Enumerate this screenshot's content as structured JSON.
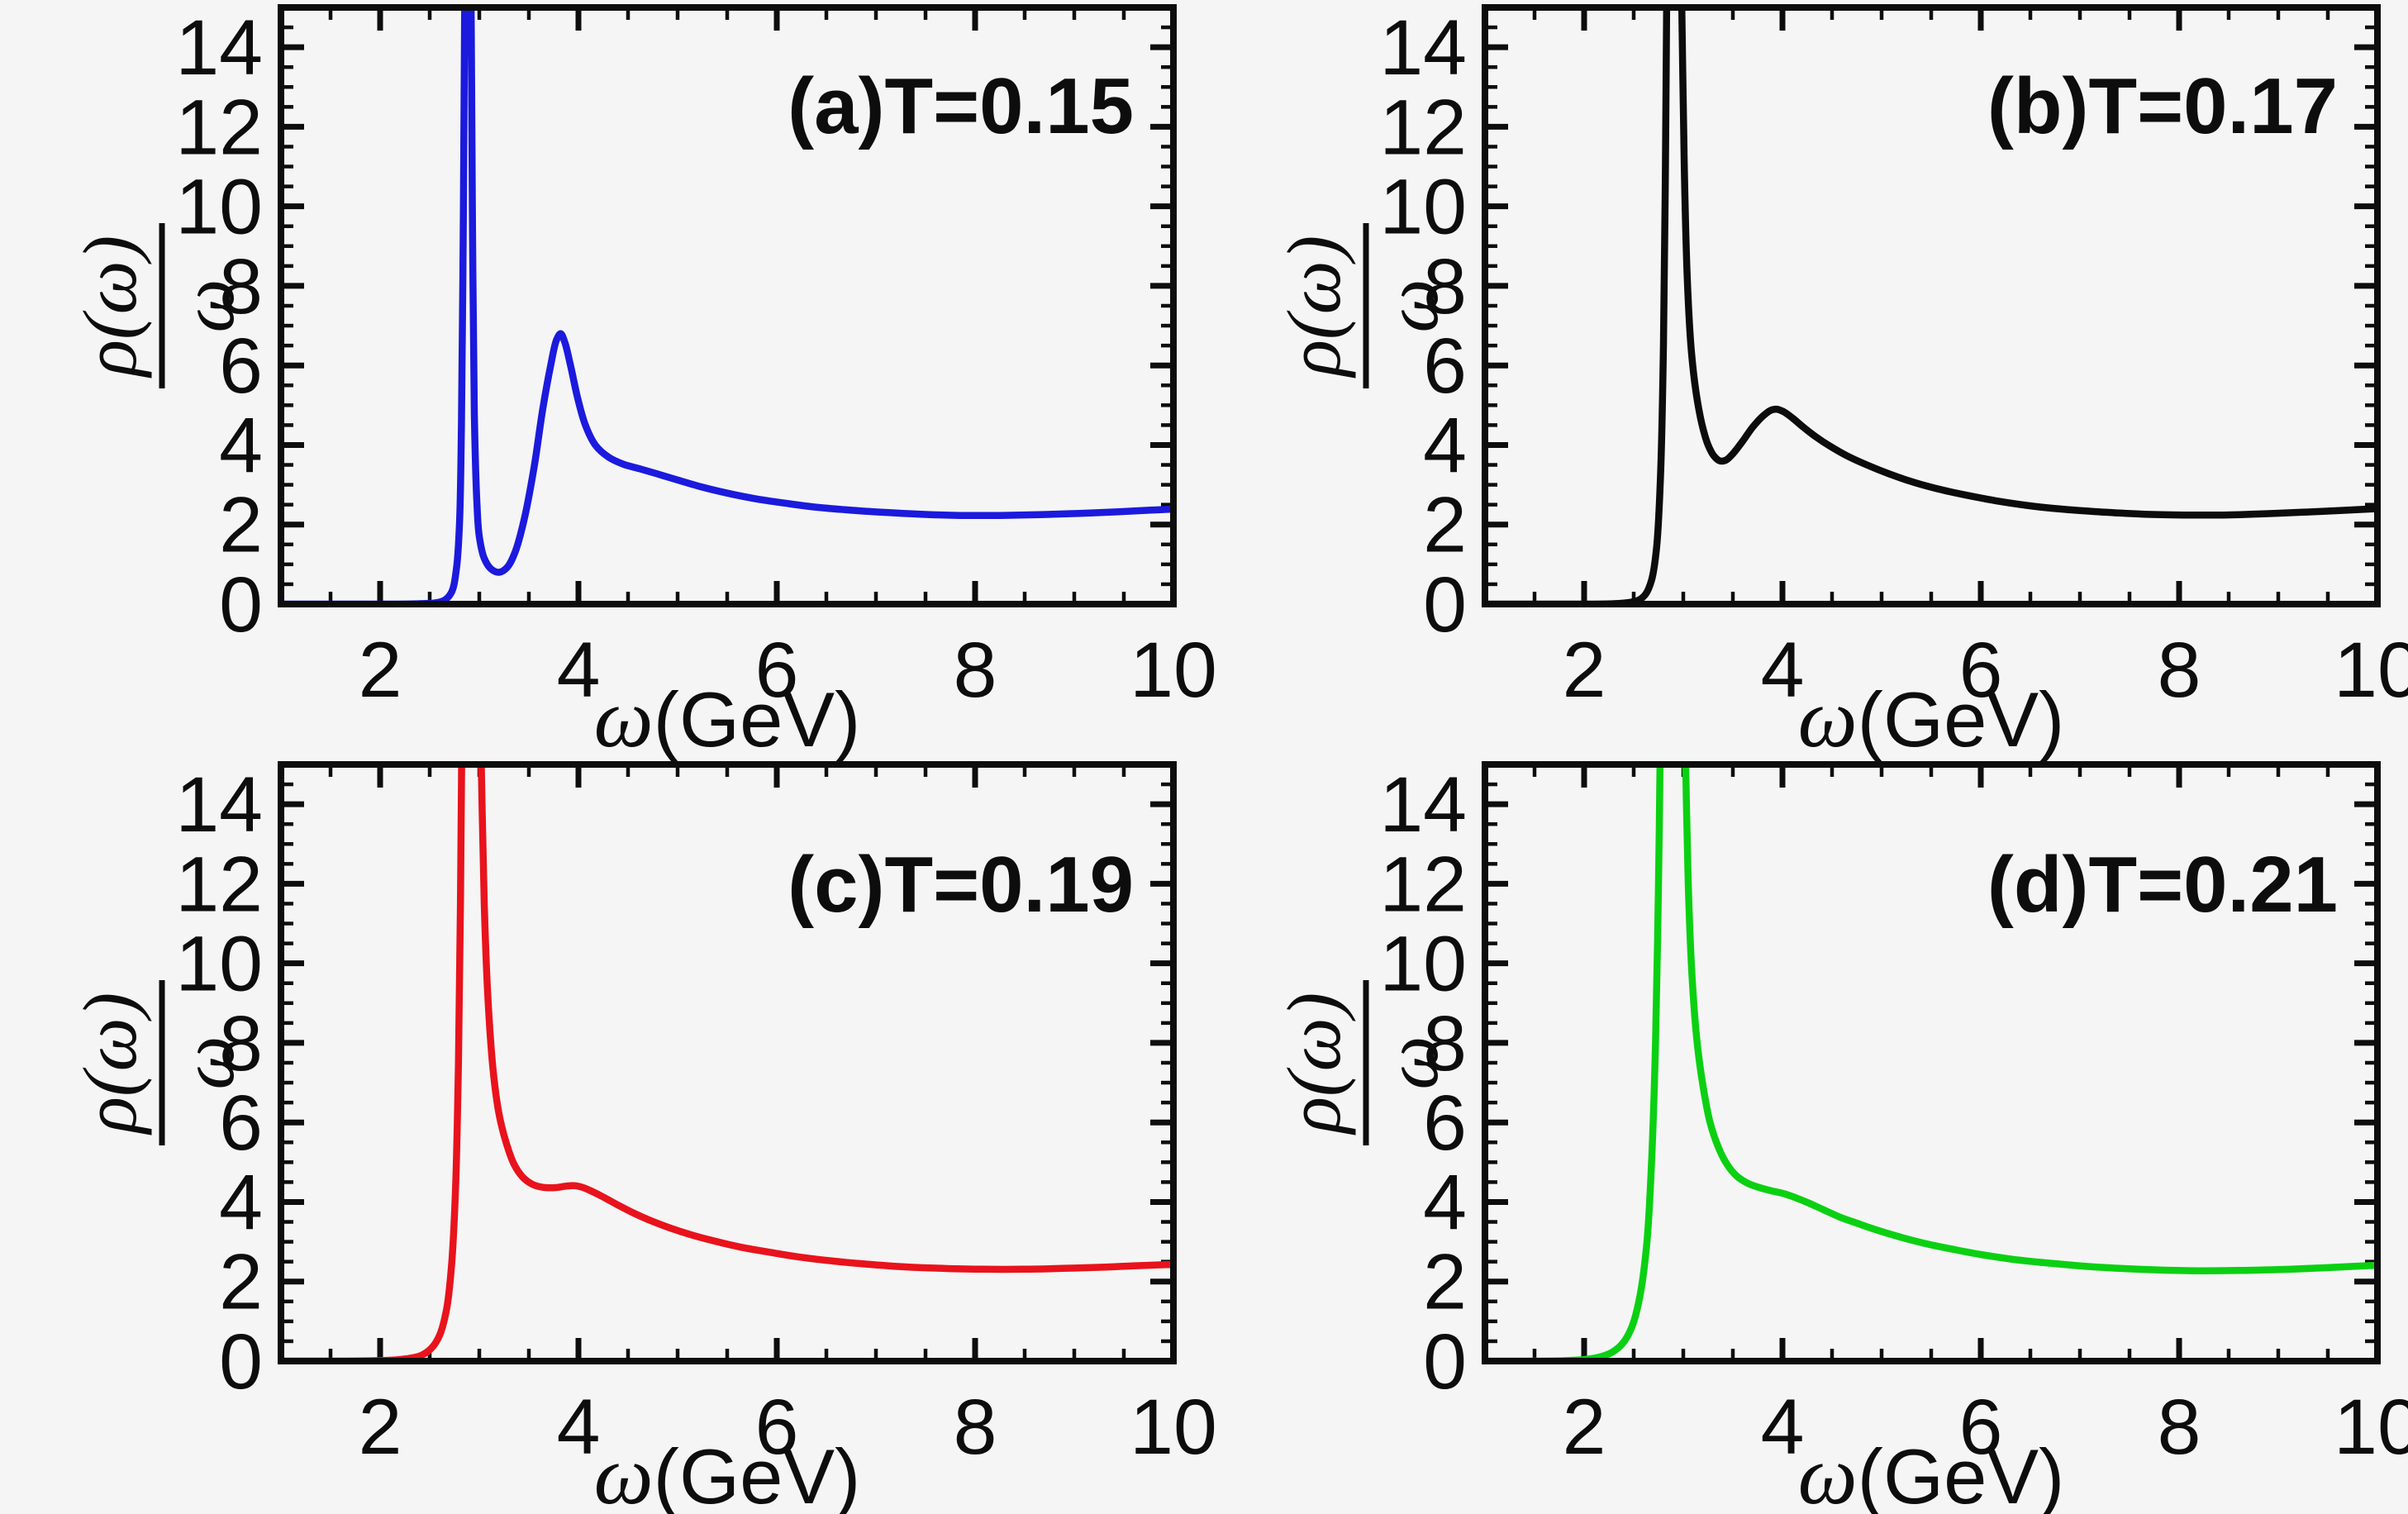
{
  "figure": {
    "background": "#f5f5f5",
    "frame_color": "#0d0d0d",
    "text_color": "#0d0d0d"
  },
  "axes": {
    "x": {
      "title_symbol": "ω",
      "title_units": "(GeV)",
      "min": 1,
      "max": 10,
      "major_ticks": [
        2,
        4,
        6,
        8,
        10
      ],
      "tick_labels": [
        "2",
        "4",
        "6",
        "8",
        "10"
      ],
      "minor_step": 0.5
    },
    "y": {
      "title_numerator": "ρ(ω)",
      "title_denominator": "ω",
      "min": 0,
      "max": 15,
      "major_ticks": [
        0,
        2,
        4,
        6,
        8,
        10,
        12,
        14
      ],
      "tick_labels": [
        "0",
        "2",
        "4",
        "6",
        "8",
        "10",
        "12",
        "14"
      ],
      "minor_step": 0.5
    }
  },
  "panels": [
    {
      "id": "a",
      "row": 0,
      "col": 0,
      "label": "(a)T=0.15",
      "color": "#1b1add",
      "chart_index": 0
    },
    {
      "id": "b",
      "row": 0,
      "col": 1,
      "label": "(b)T=0.17",
      "color": "#0c0c0c",
      "chart_index": 1
    },
    {
      "id": "c",
      "row": 1,
      "col": 0,
      "label": "(c)T=0.19",
      "color": "#e8131c",
      "chart_index": 2
    },
    {
      "id": "d",
      "row": 1,
      "col": 1,
      "label": "(d)T=0.21",
      "color": "#0bd012",
      "chart_index": 3
    }
  ],
  "chart_data": [
    {
      "type": "line",
      "panel": "a",
      "title": "(a)T=0.15",
      "temperature": "T=0.15",
      "xlabel": "ω(GeV)",
      "ylabel": "ρ(ω)/ω",
      "xlim": [
        1,
        10
      ],
      "ylim": [
        0,
        15
      ],
      "x_major_ticks": [
        2,
        4,
        6,
        8,
        10
      ],
      "y_major_ticks": [
        0,
        2,
        4,
        6,
        8,
        10,
        12,
        14
      ],
      "minor_tick_step": 0.5,
      "grid": false,
      "legend_position": "none",
      "clipped_peak": {
        "omega": 2.88,
        "exceeds_ylim": true
      },
      "secondary_peak": {
        "omega": 3.8,
        "value": 6.8
      },
      "series": [
        {
          "name": "rho(omega)/omega at T=0.15",
          "color": "#1b1add",
          "points": [
            [
              1,
              0
            ],
            [
              1.6,
              0
            ],
            [
              2.1,
              0
            ],
            [
              2.4,
              0.01
            ],
            [
              2.55,
              0.03
            ],
            [
              2.65,
              0.1
            ],
            [
              2.72,
              0.3
            ],
            [
              2.77,
              0.9
            ],
            [
              2.8,
              2
            ],
            [
              2.82,
              4.5
            ],
            [
              2.84,
              10
            ],
            [
              2.855,
              16
            ],
            [
              2.865,
              18.5
            ],
            [
              2.9,
              18.5
            ],
            [
              2.915,
              16
            ],
            [
              2.93,
              10
            ],
            [
              2.95,
              4.8
            ],
            [
              2.975,
              2.6
            ],
            [
              3,
              1.7
            ],
            [
              3.05,
              1.15
            ],
            [
              3.12,
              0.88
            ],
            [
              3.2,
              0.8
            ],
            [
              3.28,
              0.92
            ],
            [
              3.36,
              1.3
            ],
            [
              3.45,
              2.1
            ],
            [
              3.55,
              3.4
            ],
            [
              3.64,
              4.9
            ],
            [
              3.72,
              6
            ],
            [
              3.78,
              6.65
            ],
            [
              3.82,
              6.8
            ],
            [
              3.86,
              6.6
            ],
            [
              3.92,
              6
            ],
            [
              3.99,
              5.2
            ],
            [
              4.07,
              4.5
            ],
            [
              4.17,
              4
            ],
            [
              4.3,
              3.7
            ],
            [
              4.45,
              3.52
            ],
            [
              4.62,
              3.4
            ],
            [
              4.8,
              3.27
            ],
            [
              5,
              3.12
            ],
            [
              5.25,
              2.94
            ],
            [
              5.5,
              2.79
            ],
            [
              5.78,
              2.65
            ],
            [
              6.05,
              2.55
            ],
            [
              6.35,
              2.45
            ],
            [
              6.7,
              2.37
            ],
            [
              7.05,
              2.31
            ],
            [
              7.45,
              2.26
            ],
            [
              7.85,
              2.23
            ],
            [
              8.25,
              2.23
            ],
            [
              8.65,
              2.25
            ],
            [
              9.05,
              2.28
            ],
            [
              9.45,
              2.32
            ],
            [
              9.75,
              2.36
            ],
            [
              10,
              2.39
            ]
          ]
        }
      ]
    },
    {
      "type": "line",
      "panel": "b",
      "title": "(b)T=0.17",
      "temperature": "T=0.17",
      "xlabel": "ω(GeV)",
      "ylabel": "ρ(ω)/ω",
      "xlim": [
        1,
        10
      ],
      "ylim": [
        0,
        15
      ],
      "x_major_ticks": [
        2,
        4,
        6,
        8,
        10
      ],
      "y_major_ticks": [
        0,
        2,
        4,
        6,
        8,
        10,
        12,
        14
      ],
      "minor_tick_step": 0.5,
      "grid": false,
      "legend_position": "none",
      "clipped_peak": {
        "omega": 2.9,
        "exceeds_ylim": true
      },
      "secondary_peak": {
        "omega": 3.9,
        "value": 4.9
      },
      "series": [
        {
          "name": "rho(omega)/omega at T=0.17",
          "color": "#0c0c0c",
          "points": [
            [
              1,
              0
            ],
            [
              1.6,
              0
            ],
            [
              2.05,
              0
            ],
            [
              2.3,
              0.01
            ],
            [
              2.45,
              0.04
            ],
            [
              2.55,
              0.1
            ],
            [
              2.62,
              0.25
            ],
            [
              2.68,
              0.6
            ],
            [
              2.73,
              1.4
            ],
            [
              2.77,
              3.2
            ],
            [
              2.8,
              6.5
            ],
            [
              2.82,
              11
            ],
            [
              2.835,
              16
            ],
            [
              2.845,
              18.5
            ],
            [
              2.96,
              18.5
            ],
            [
              2.985,
              15
            ],
            [
              3.01,
              11
            ],
            [
              3.04,
              8.2
            ],
            [
              3.08,
              6.4
            ],
            [
              3.13,
              5.3
            ],
            [
              3.19,
              4.5
            ],
            [
              3.25,
              4
            ],
            [
              3.31,
              3.72
            ],
            [
              3.37,
              3.6
            ],
            [
              3.43,
              3.62
            ],
            [
              3.5,
              3.78
            ],
            [
              3.6,
              4.1
            ],
            [
              3.7,
              4.45
            ],
            [
              3.8,
              4.72
            ],
            [
              3.88,
              4.87
            ],
            [
              3.94,
              4.9
            ],
            [
              4.01,
              4.84
            ],
            [
              4.1,
              4.68
            ],
            [
              4.21,
              4.45
            ],
            [
              4.34,
              4.2
            ],
            [
              4.48,
              3.97
            ],
            [
              4.65,
              3.73
            ],
            [
              4.85,
              3.5
            ],
            [
              5.07,
              3.28
            ],
            [
              5.3,
              3.08
            ],
            [
              5.56,
              2.9
            ],
            [
              5.85,
              2.74
            ],
            [
              6.15,
              2.6
            ],
            [
              6.5,
              2.47
            ],
            [
              6.85,
              2.38
            ],
            [
              7.25,
              2.31
            ],
            [
              7.65,
              2.26
            ],
            [
              8.05,
              2.24
            ],
            [
              8.45,
              2.24
            ],
            [
              8.85,
              2.27
            ],
            [
              9.25,
              2.31
            ],
            [
              9.6,
              2.35
            ],
            [
              10,
              2.4
            ]
          ]
        }
      ]
    },
    {
      "type": "line",
      "panel": "c",
      "title": "(c)T=0.19",
      "temperature": "T=0.19",
      "xlabel": "ω(GeV)",
      "ylabel": "ρ(ω)/ω",
      "xlim": [
        1,
        10
      ],
      "ylim": [
        0,
        15
      ],
      "x_major_ticks": [
        2,
        4,
        6,
        8,
        10
      ],
      "y_major_ticks": [
        0,
        2,
        4,
        6,
        8,
        10,
        12,
        14
      ],
      "minor_tick_step": 0.5,
      "grid": false,
      "legend_position": "none",
      "clipped_peak": {
        "omega": 2.92,
        "exceeds_ylim": true
      },
      "secondary_peak": {
        "omega": 3.95,
        "value": 4.41
      },
      "series": [
        {
          "name": "rho(omega)/omega at T=0.19",
          "color": "#e8131c",
          "points": [
            [
              1,
              0
            ],
            [
              1.6,
              0
            ],
            [
              1.95,
              0.01
            ],
            [
              2.15,
              0.03
            ],
            [
              2.3,
              0.07
            ],
            [
              2.42,
              0.15
            ],
            [
              2.52,
              0.33
            ],
            [
              2.6,
              0.65
            ],
            [
              2.67,
              1.3
            ],
            [
              2.72,
              2.4
            ],
            [
              2.76,
              4.3
            ],
            [
              2.79,
              7.5
            ],
            [
              2.81,
              11.5
            ],
            [
              2.825,
              16
            ],
            [
              2.835,
              18.5
            ],
            [
              2.99,
              18.5
            ],
            [
              3.02,
              15
            ],
            [
              3.05,
              11.5
            ],
            [
              3.09,
              9
            ],
            [
              3.14,
              7.3
            ],
            [
              3.2,
              6.2
            ],
            [
              3.27,
              5.5
            ],
            [
              3.35,
              4.95
            ],
            [
              3.44,
              4.62
            ],
            [
              3.54,
              4.44
            ],
            [
              3.64,
              4.37
            ],
            [
              3.76,
              4.36
            ],
            [
              3.88,
              4.4
            ],
            [
              3.96,
              4.41
            ],
            [
              4.05,
              4.36
            ],
            [
              4.15,
              4.25
            ],
            [
              4.27,
              4.1
            ],
            [
              4.4,
              3.92
            ],
            [
              4.55,
              3.73
            ],
            [
              4.72,
              3.54
            ],
            [
              4.92,
              3.35
            ],
            [
              5.13,
              3.18
            ],
            [
              5.37,
              3.02
            ],
            [
              5.63,
              2.87
            ],
            [
              5.92,
              2.74
            ],
            [
              6.22,
              2.62
            ],
            [
              6.55,
              2.52
            ],
            [
              6.9,
              2.44
            ],
            [
              7.28,
              2.37
            ],
            [
              7.68,
              2.33
            ],
            [
              8.08,
              2.31
            ],
            [
              8.48,
              2.31
            ],
            [
              8.88,
              2.33
            ],
            [
              9.28,
              2.36
            ],
            [
              9.65,
              2.4
            ],
            [
              10,
              2.43
            ]
          ]
        }
      ]
    },
    {
      "type": "line",
      "panel": "d",
      "title": "(d)T=0.21",
      "temperature": "T=0.21",
      "xlabel": "ω(GeV)",
      "ylabel": "ρ(ω)/ω",
      "xlim": [
        1,
        10
      ],
      "ylim": [
        0,
        15
      ],
      "x_major_ticks": [
        2,
        4,
        6,
        8,
        10
      ],
      "y_major_ticks": [
        0,
        2,
        4,
        6,
        8,
        10,
        12,
        14
      ],
      "minor_tick_step": 0.5,
      "grid": false,
      "legend_position": "none",
      "clipped_peak": {
        "omega": 2.9,
        "exceeds_ylim": true
      },
      "secondary_peak": {
        "omega": 3.8,
        "value": 4.35,
        "shape": "shoulder"
      },
      "series": [
        {
          "name": "rho(omega)/omega at T=0.21",
          "color": "#0bd012",
          "points": [
            [
              1,
              0
            ],
            [
              1.5,
              0
            ],
            [
              1.8,
              0.01
            ],
            [
              2,
              0.04
            ],
            [
              2.15,
              0.1
            ],
            [
              2.28,
              0.22
            ],
            [
              2.39,
              0.45
            ],
            [
              2.48,
              0.85
            ],
            [
              2.56,
              1.6
            ],
            [
              2.63,
              2.9
            ],
            [
              2.68,
              5
            ],
            [
              2.72,
              8
            ],
            [
              2.75,
              12
            ],
            [
              2.77,
              16
            ],
            [
              2.78,
              18.5
            ],
            [
              2.99,
              18.5
            ],
            [
              3.02,
              15.5
            ],
            [
              3.05,
              12
            ],
            [
              3.09,
              9.6
            ],
            [
              3.14,
              8
            ],
            [
              3.2,
              6.9
            ],
            [
              3.27,
              6
            ],
            [
              3.35,
              5.4
            ],
            [
              3.44,
              4.95
            ],
            [
              3.54,
              4.65
            ],
            [
              3.65,
              4.47
            ],
            [
              3.77,
              4.36
            ],
            [
              3.89,
              4.28
            ],
            [
              4,
              4.22
            ],
            [
              4.12,
              4.12
            ],
            [
              4.26,
              3.98
            ],
            [
              4.41,
              3.81
            ],
            [
              4.58,
              3.62
            ],
            [
              4.77,
              3.45
            ],
            [
              4.97,
              3.28
            ],
            [
              5.2,
              3.11
            ],
            [
              5.45,
              2.95
            ],
            [
              5.72,
              2.81
            ],
            [
              6,
              2.68
            ],
            [
              6.32,
              2.56
            ],
            [
              6.66,
              2.47
            ],
            [
              7.02,
              2.39
            ],
            [
              7.4,
              2.33
            ],
            [
              7.8,
              2.29
            ],
            [
              8.2,
              2.27
            ],
            [
              8.6,
              2.28
            ],
            [
              9,
              2.3
            ],
            [
              9.4,
              2.34
            ],
            [
              9.75,
              2.38
            ],
            [
              10,
              2.41
            ]
          ]
        }
      ]
    }
  ]
}
